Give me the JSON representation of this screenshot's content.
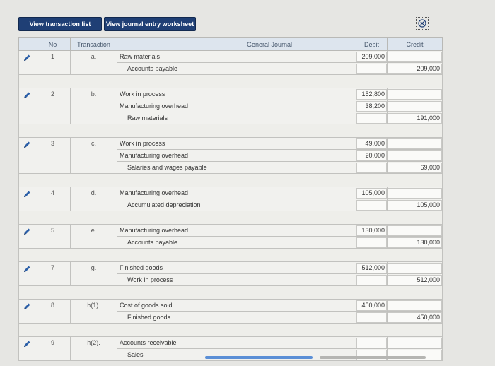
{
  "tabs": {
    "transaction_list": "View transaction list",
    "journal_worksheet": "View journal entry worksheet"
  },
  "headers": {
    "no": "No",
    "transaction": "Transaction",
    "general_journal": "General Journal",
    "debit": "Debit",
    "credit": "Credit"
  },
  "entries": [
    {
      "no": "1",
      "transaction": "a.",
      "lines": [
        {
          "account": "Raw materials",
          "debit": "209,000",
          "credit": ""
        },
        {
          "account": "Accounts payable",
          "debit": "",
          "credit": "209,000"
        }
      ]
    },
    {
      "no": "2",
      "transaction": "b.",
      "lines": [
        {
          "account": "Work in process",
          "debit": "152,800",
          "credit": ""
        },
        {
          "account": "Manufacturing overhead",
          "debit": "38,200",
          "credit": ""
        },
        {
          "account": "Raw materials",
          "debit": "",
          "credit": "191,000"
        }
      ]
    },
    {
      "no": "3",
      "transaction": "c.",
      "lines": [
        {
          "account": "Work in process",
          "debit": "49,000",
          "credit": ""
        },
        {
          "account": "Manufacturing overhead",
          "debit": "20,000",
          "credit": ""
        },
        {
          "account": "Salaries and wages payable",
          "debit": "",
          "credit": "69,000"
        }
      ]
    },
    {
      "no": "4",
      "transaction": "d.",
      "lines": [
        {
          "account": "Manufacturing overhead",
          "debit": "105,000",
          "credit": ""
        },
        {
          "account": "Accumulated depreciation",
          "debit": "",
          "credit": "105,000"
        }
      ]
    },
    {
      "no": "5",
      "transaction": "e.",
      "lines": [
        {
          "account": "Manufacturing overhead",
          "debit": "130,000",
          "credit": ""
        },
        {
          "account": "Accounts payable",
          "debit": "",
          "credit": "130,000"
        }
      ]
    },
    {
      "no": "7",
      "transaction": "g.",
      "lines": [
        {
          "account": "Finished goods",
          "debit": "512,000",
          "credit": ""
        },
        {
          "account": "Work in process",
          "debit": "",
          "credit": "512,000"
        }
      ]
    },
    {
      "no": "8",
      "transaction": "h(1).",
      "lines": [
        {
          "account": "Cost of goods sold",
          "debit": "450,000",
          "credit": ""
        },
        {
          "account": "Finished goods",
          "debit": "",
          "credit": "450,000"
        }
      ]
    },
    {
      "no": "9",
      "transaction": "h(2).",
      "lines": [
        {
          "account": "Accounts receivable",
          "debit": "",
          "credit": ""
        },
        {
          "account": "Sales",
          "debit": "",
          "credit": ""
        }
      ]
    }
  ],
  "colors": {
    "tab_bg": "#1f3f75",
    "header_bg": "#dde5ee"
  },
  "icons": {
    "edit": "pencil-icon",
    "close": "close-icon"
  }
}
